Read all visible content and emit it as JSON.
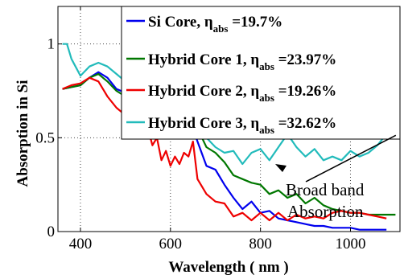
{
  "chart_data": {
    "type": "line",
    "xlabel": "Wavelength ( nm )",
    "ylabel": "Absorption in Si",
    "xlim": [
      350,
      1110
    ],
    "ylim": [
      0,
      1.2
    ],
    "x_ticks": [
      400,
      600,
      800,
      1000
    ],
    "y_ticks": [
      0,
      0.5,
      1
    ],
    "x_tick_labels": [
      "400",
      "600",
      "800",
      "1000"
    ],
    "y_tick_labels": [
      "0",
      "0.5",
      "1"
    ],
    "grid": true,
    "legend_position": "top-right",
    "series": [
      {
        "name_prefix": "Si Core, η",
        "name_sub": "abs",
        "name_suffix": " =19.7%",
        "color": "#0000ee",
        "points": [
          [
            360,
            0.76
          ],
          [
            380,
            0.77
          ],
          [
            400,
            0.78
          ],
          [
            420,
            0.82
          ],
          [
            440,
            0.85
          ],
          [
            460,
            0.82
          ],
          [
            480,
            0.76
          ],
          [
            500,
            0.74
          ],
          [
            520,
            0.71
          ],
          [
            540,
            0.7
          ],
          [
            560,
            0.74
          ],
          [
            580,
            0.88
          ],
          [
            590,
            0.83
          ],
          [
            600,
            0.8
          ],
          [
            610,
            0.72
          ],
          [
            620,
            0.7
          ],
          [
            630,
            0.76
          ],
          [
            640,
            0.62
          ],
          [
            650,
            0.55
          ],
          [
            660,
            0.48
          ],
          [
            680,
            0.35
          ],
          [
            700,
            0.33
          ],
          [
            720,
            0.25
          ],
          [
            740,
            0.18
          ],
          [
            760,
            0.12
          ],
          [
            780,
            0.16
          ],
          [
            800,
            0.1
          ],
          [
            820,
            0.11
          ],
          [
            840,
            0.07
          ],
          [
            860,
            0.06
          ],
          [
            880,
            0.05
          ],
          [
            900,
            0.04
          ],
          [
            920,
            0.03
          ],
          [
            940,
            0.03
          ],
          [
            960,
            0.02
          ],
          [
            980,
            0.02
          ],
          [
            1000,
            0.02
          ],
          [
            1020,
            0.01
          ],
          [
            1050,
            0.01
          ],
          [
            1080,
            0.01
          ]
        ]
      },
      {
        "name_prefix": "Hybrid Core 1,  η",
        "name_sub": "abs",
        "name_suffix": " =23.97%",
        "color": "#007700",
        "points": [
          [
            360,
            0.76
          ],
          [
            380,
            0.77
          ],
          [
            400,
            0.78
          ],
          [
            420,
            0.82
          ],
          [
            440,
            0.84
          ],
          [
            460,
            0.8
          ],
          [
            480,
            0.75
          ],
          [
            500,
            0.72
          ],
          [
            520,
            0.69
          ],
          [
            540,
            0.68
          ],
          [
            560,
            0.66
          ],
          [
            580,
            0.68
          ],
          [
            600,
            0.72
          ],
          [
            620,
            0.7
          ],
          [
            640,
            0.62
          ],
          [
            660,
            0.55
          ],
          [
            680,
            0.45
          ],
          [
            700,
            0.42
          ],
          [
            720,
            0.37
          ],
          [
            740,
            0.3
          ],
          [
            760,
            0.28
          ],
          [
            780,
            0.26
          ],
          [
            800,
            0.25
          ],
          [
            820,
            0.2
          ],
          [
            840,
            0.22
          ],
          [
            860,
            0.18
          ],
          [
            880,
            0.2
          ],
          [
            900,
            0.15
          ],
          [
            920,
            0.18
          ],
          [
            940,
            0.14
          ],
          [
            960,
            0.12
          ],
          [
            980,
            0.11
          ],
          [
            1000,
            0.1
          ],
          [
            1020,
            0.1
          ],
          [
            1040,
            0.09
          ],
          [
            1060,
            0.09
          ],
          [
            1080,
            0.09
          ],
          [
            1100,
            0.09
          ]
        ]
      },
      {
        "name_prefix": "Hybrid Core 2,  η",
        "name_sub": "abs",
        "name_suffix": " =19.26%",
        "color": "#ee0000",
        "points": [
          [
            360,
            0.76
          ],
          [
            380,
            0.78
          ],
          [
            400,
            0.79
          ],
          [
            420,
            0.82
          ],
          [
            440,
            0.8
          ],
          [
            460,
            0.72
          ],
          [
            480,
            0.66
          ],
          [
            500,
            0.62
          ],
          [
            520,
            0.56
          ],
          [
            540,
            0.5
          ],
          [
            550,
            0.55
          ],
          [
            560,
            0.46
          ],
          [
            570,
            0.5
          ],
          [
            580,
            0.38
          ],
          [
            590,
            0.43
          ],
          [
            600,
            0.35
          ],
          [
            610,
            0.4
          ],
          [
            620,
            0.36
          ],
          [
            630,
            0.42
          ],
          [
            640,
            0.4
          ],
          [
            650,
            0.48
          ],
          [
            660,
            0.28
          ],
          [
            680,
            0.2
          ],
          [
            700,
            0.16
          ],
          [
            720,
            0.15
          ],
          [
            740,
            0.08
          ],
          [
            760,
            0.1
          ],
          [
            780,
            0.06
          ],
          [
            800,
            0.1
          ],
          [
            820,
            0.06
          ],
          [
            840,
            0.1
          ],
          [
            860,
            0.06
          ],
          [
            880,
            0.09
          ],
          [
            900,
            0.07
          ],
          [
            920,
            0.08
          ],
          [
            940,
            0.07
          ],
          [
            960,
            0.1
          ],
          [
            980,
            0.11
          ],
          [
            1000,
            0.1
          ],
          [
            1020,
            0.1
          ],
          [
            1040,
            0.09
          ],
          [
            1060,
            0.08
          ],
          [
            1080,
            0.07
          ]
        ]
      },
      {
        "name_prefix": "Hybrid Core 3,  η",
        "name_sub": "abs",
        "name_suffix": " =32.62%",
        "color": "#22bbbb",
        "points": [
          [
            360,
            1.0
          ],
          [
            370,
            1.0
          ],
          [
            380,
            0.92
          ],
          [
            400,
            0.83
          ],
          [
            420,
            0.88
          ],
          [
            440,
            0.9
          ],
          [
            460,
            0.88
          ],
          [
            480,
            0.84
          ],
          [
            500,
            0.8
          ],
          [
            520,
            0.78
          ],
          [
            540,
            0.76
          ],
          [
            560,
            0.8
          ],
          [
            580,
            0.82
          ],
          [
            600,
            0.72
          ],
          [
            620,
            0.68
          ],
          [
            640,
            0.66
          ],
          [
            660,
            0.52
          ],
          [
            680,
            0.5
          ],
          [
            700,
            0.45
          ],
          [
            720,
            0.42
          ],
          [
            740,
            0.43
          ],
          [
            760,
            0.36
          ],
          [
            780,
            0.42
          ],
          [
            800,
            0.44
          ],
          [
            820,
            0.38
          ],
          [
            840,
            0.45
          ],
          [
            860,
            0.52
          ],
          [
            880,
            0.45
          ],
          [
            900,
            0.4
          ],
          [
            920,
            0.44
          ],
          [
            940,
            0.38
          ],
          [
            960,
            0.4
          ],
          [
            980,
            0.38
          ],
          [
            1000,
            0.43
          ],
          [
            1020,
            0.4
          ],
          [
            1040,
            0.42
          ],
          [
            1060,
            0.46
          ],
          [
            1080,
            0.52
          ],
          [
            1095,
            0.6
          ]
        ]
      }
    ],
    "annotation": {
      "line1": "Broad band",
      "line2": "Absorption",
      "arrow_target": [
        1090,
        0.53
      ]
    }
  }
}
